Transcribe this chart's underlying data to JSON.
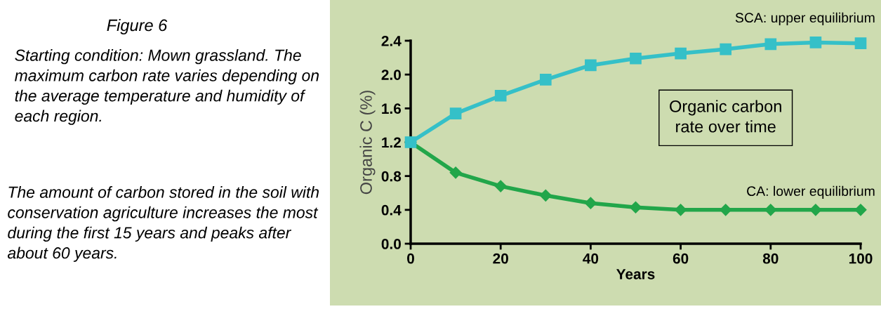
{
  "chart_data": {
    "type": "line",
    "title": "Figure 6",
    "annotations": [
      "Starting condition: Mown grassland. The maximum carbon rate varies depending on the average temperature and humidity of each region.",
      "The amount of carbon stored in the soil with conservation agriculture increases the most during the first 15 years and peaks after about 60 years.",
      "Organic carbon\nrate over time"
    ],
    "xlabel": "Years",
    "ylabel": "Organic C (%)",
    "x": [
      0,
      10,
      20,
      30,
      40,
      50,
      60,
      70,
      80,
      90,
      100
    ],
    "series": [
      {
        "name": "SCA: upper equilibrium",
        "color": "#35c0c8",
        "marker": "square",
        "values": [
          1.2,
          1.54,
          1.75,
          1.94,
          2.11,
          2.19,
          2.25,
          2.3,
          2.36,
          2.38,
          2.37
        ]
      },
      {
        "name": "CA: lower equilibrium",
        "color": "#22a64a",
        "marker": "diamond",
        "values": [
          1.2,
          0.84,
          0.68,
          0.57,
          0.48,
          0.43,
          0.4,
          0.4,
          0.4,
          0.4,
          0.4
        ]
      }
    ],
    "xlim": [
      0,
      100
    ],
    "xticks": [
      0,
      20,
      40,
      60,
      80,
      100
    ],
    "ylim": [
      0,
      2.4
    ],
    "yticks": [
      {
        "value": 0,
        "label": "0.0"
      },
      {
        "value": 0.4,
        "label": "0.4"
      },
      {
        "value": 0.8,
        "label": "0.8"
      },
      {
        "value": 1.2,
        "label": "1.2"
      },
      {
        "value": 1.6,
        "label": "1.6"
      },
      {
        "value": 2.0,
        "label": "2.0"
      },
      {
        "value": 2.4,
        "label": "2.4"
      }
    ],
    "grid": false,
    "legend": false
  }
}
